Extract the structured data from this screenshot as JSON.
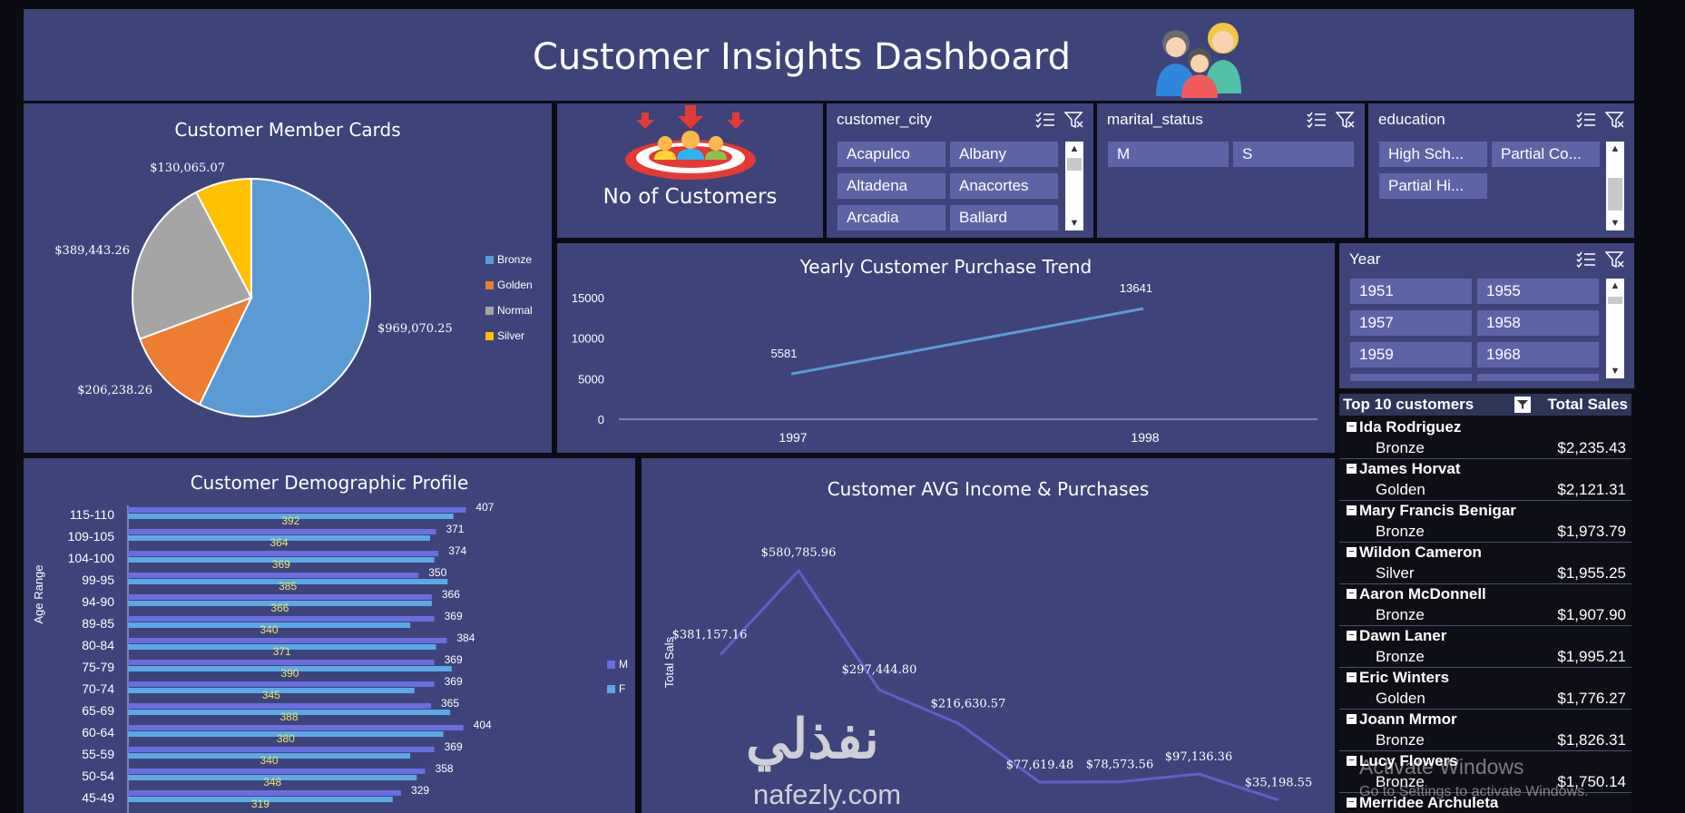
{
  "header": {
    "title": "Customer Insights Dashboard"
  },
  "member_cards": {
    "title": "Customer Member Cards",
    "legend": [
      {
        "label": "Bronze",
        "color": "#5b9bd5"
      },
      {
        "label": "Golden",
        "color": "#ed7d31"
      },
      {
        "label": "Normal",
        "color": "#a5a5a5"
      },
      {
        "label": "Silver",
        "color": "#ffc000"
      }
    ],
    "labels": {
      "bronze": "$969,070.25",
      "golden": "$206,238.26",
      "normal": "$389,443.26",
      "silver": "$130,065.07"
    }
  },
  "kpi": {
    "label": "No of Customers"
  },
  "slicers": {
    "city": {
      "title": "customer_city",
      "items": [
        "Acapulco",
        "Albany",
        "Altadena",
        "Anacortes",
        "Arcadia",
        "Ballard"
      ]
    },
    "marital": {
      "title": "marital_status",
      "items": [
        "M",
        "S"
      ]
    },
    "education": {
      "title": "education",
      "items": [
        "High Sch...",
        "Partial Co...",
        "Partial Hi..."
      ]
    },
    "year": {
      "title": "Year",
      "items": [
        "1951",
        "1955",
        "1957",
        "1958",
        "1959",
        "1968"
      ]
    }
  },
  "trend": {
    "title": "Yearly Customer Purchase Trend",
    "y_ticks": [
      "15000",
      "10000",
      "5000",
      "0"
    ],
    "x_labels": [
      "1997",
      "1998"
    ],
    "point_labels": [
      "5581",
      "13641"
    ]
  },
  "demographic": {
    "title": "Customer Demographic Profile",
    "ylabel": "Age Range",
    "legend": [
      "M",
      "F"
    ]
  },
  "income": {
    "title": "Customer AVG Income & Purchases",
    "ylabel": "Total Sals",
    "point_labels": [
      "$381,157.16",
      "$580,785.96",
      "$297,444.80",
      "$216,630.57",
      "$77,619.48",
      "$78,573.56",
      "$97,136.36",
      "$35,198.55"
    ]
  },
  "top10": {
    "header_left": "Top 10 customers",
    "header_right": "Total Sales",
    "rows": [
      {
        "name": "Ida Rodriguez",
        "card": "Bronze",
        "sales": "$2,235.43"
      },
      {
        "name": "James Horvat",
        "card": "Golden",
        "sales": "$2,121.31"
      },
      {
        "name": "Mary Francis Benigar",
        "card": "Bronze",
        "sales": "$1,973.79"
      },
      {
        "name": "Wildon Cameron",
        "card": "Silver",
        "sales": "$1,955.25"
      },
      {
        "name": "Aaron McDonnell",
        "card": "Bronze",
        "sales": "$1,907.90"
      },
      {
        "name": "Dawn Laner",
        "card": "Bronze",
        "sales": "$1,995.21"
      },
      {
        "name": "Eric Winters",
        "card": "Golden",
        "sales": "$1,776.27"
      },
      {
        "name": "Joann Mrmor",
        "card": "Bronze",
        "sales": "$1,826.31"
      },
      {
        "name": "Lucy Flowers",
        "card": "Bronze",
        "sales": "$1,750.14"
      },
      {
        "name": "Merridee Archuleta",
        "card": "",
        "sales": ""
      }
    ]
  },
  "overlay": {
    "activate_title": "Activate Windows",
    "activate_sub": "Go to Settings to activate Windows.",
    "watermark_ar": "نفذلي",
    "watermark_en": "nafezly.com"
  },
  "chart_data": [
    {
      "type": "pie",
      "title": "Customer Member Cards",
      "categories": [
        "Bronze",
        "Golden",
        "Normal",
        "Silver"
      ],
      "values": [
        969070.25,
        206238.26,
        389443.26,
        130065.07
      ],
      "legend": "right"
    },
    {
      "type": "line",
      "title": "Yearly Customer Purchase Trend",
      "categories": [
        "1997",
        "1998"
      ],
      "values": [
        5581,
        13641
      ],
      "ylim": [
        0,
        15000
      ]
    },
    {
      "type": "bar",
      "title": "Customer Demographic Profile",
      "ylabel": "Age Range",
      "categories": [
        "115-110",
        "109-105",
        "104-100",
        "99-95",
        "94-90",
        "89-85",
        "80-84",
        "75-79",
        "70-74",
        "65-69",
        "60-64",
        "55-59",
        "50-54",
        "45-49"
      ],
      "series": [
        {
          "name": "M",
          "values": [
            407,
            371,
            374,
            350,
            366,
            369,
            384,
            369,
            369,
            365,
            404,
            369,
            358,
            329
          ]
        },
        {
          "name": "F",
          "values": [
            392,
            364,
            369,
            385,
            366,
            340,
            371,
            390,
            345,
            388,
            380,
            340,
            348,
            319
          ]
        }
      ],
      "legend": "right"
    },
    {
      "type": "line",
      "title": "Customer AVG Income & Purchases",
      "ylabel": "Total Sals",
      "values": [
        381157.16,
        580785.96,
        297444.8,
        216630.57,
        77619.48,
        78573.56,
        97136.36,
        35198.55
      ]
    }
  ]
}
